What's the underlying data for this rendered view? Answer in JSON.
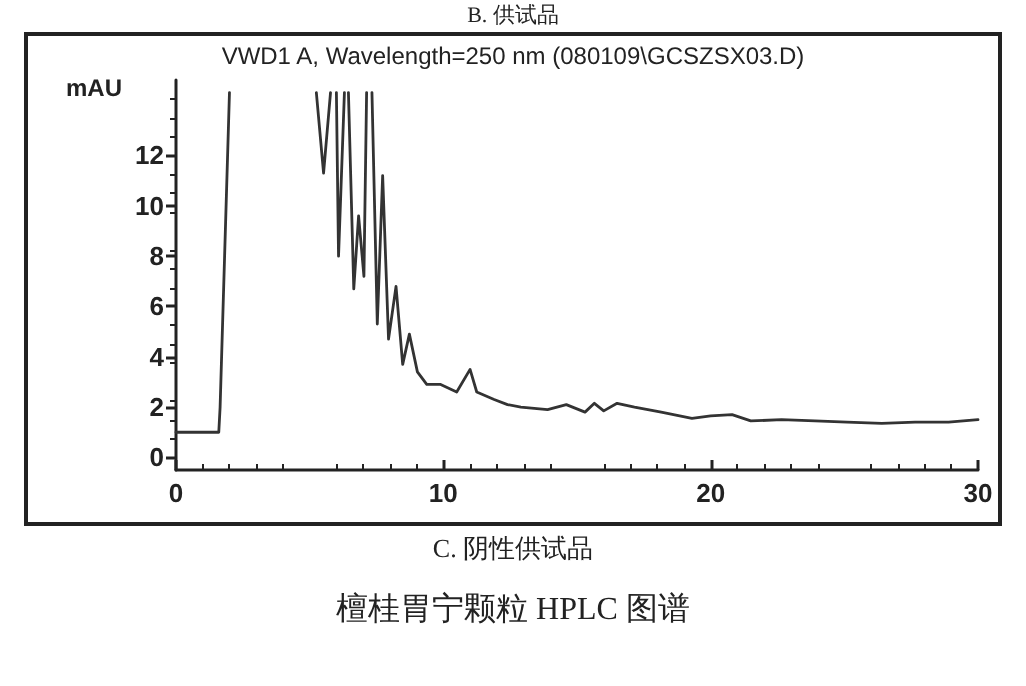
{
  "chart_data": {
    "type": "line",
    "title": "VWD1 A, Wavelength=250 nm (080109\\GCSZSX03.D)",
    "ylabel": "mAU",
    "annotations": [
      "B. 供试品",
      "C. 阴性供试品",
      "檀桂胃宁颗粒 HPLC 图谱"
    ],
    "x": [
      0,
      1.6,
      1.65,
      2.0,
      3.6,
      5.25,
      5.52,
      5.78,
      5.9,
      6.0,
      6.08,
      6.3,
      6.38,
      6.45,
      6.65,
      6.83,
      7.03,
      7.13,
      7.23,
      7.33,
      7.53,
      7.73,
      7.95,
      8.23,
      8.48,
      8.73,
      9.03,
      9.38,
      9.9,
      10.5,
      11.0,
      11.25,
      11.9,
      12.4,
      12.9,
      13.9,
      14.6,
      15.3,
      15.65,
      16.0,
      16.5,
      17.15,
      18.15,
      19.3,
      20.0,
      20.8,
      21.5,
      22.65,
      23.9,
      25.1,
      26.4,
      27.65,
      28.9,
      30
    ],
    "series": [
      {
        "color": "#333333",
        "values": [
          1.0,
          1.0,
          2.0,
          14.5,
          null,
          14.5,
          11.3,
          14.5,
          null,
          14.5,
          8.0,
          14.5,
          null,
          14.5,
          6.7,
          9.6,
          7.2,
          14.5,
          null,
          14.5,
          5.3,
          11.2,
          4.7,
          6.8,
          3.7,
          4.9,
          3.4,
          2.9,
          2.9,
          2.6,
          3.5,
          2.6,
          2.3,
          2.1,
          2.0,
          1.9,
          2.1,
          1.8,
          2.15,
          1.85,
          2.15,
          2.0,
          1.8,
          1.55,
          1.65,
          1.7,
          1.45,
          1.5,
          1.45,
          1.4,
          1.35,
          1.4,
          1.4,
          1.5
        ]
      }
    ],
    "xlim": [
      0,
      30
    ],
    "xticks": [
      0,
      10,
      20,
      30
    ],
    "ylim": [
      -0.5,
      15
    ],
    "yticks": [
      0,
      2,
      4,
      6,
      8,
      10,
      12
    ],
    "grid": false,
    "marker": "none",
    "line_style": "solid"
  }
}
